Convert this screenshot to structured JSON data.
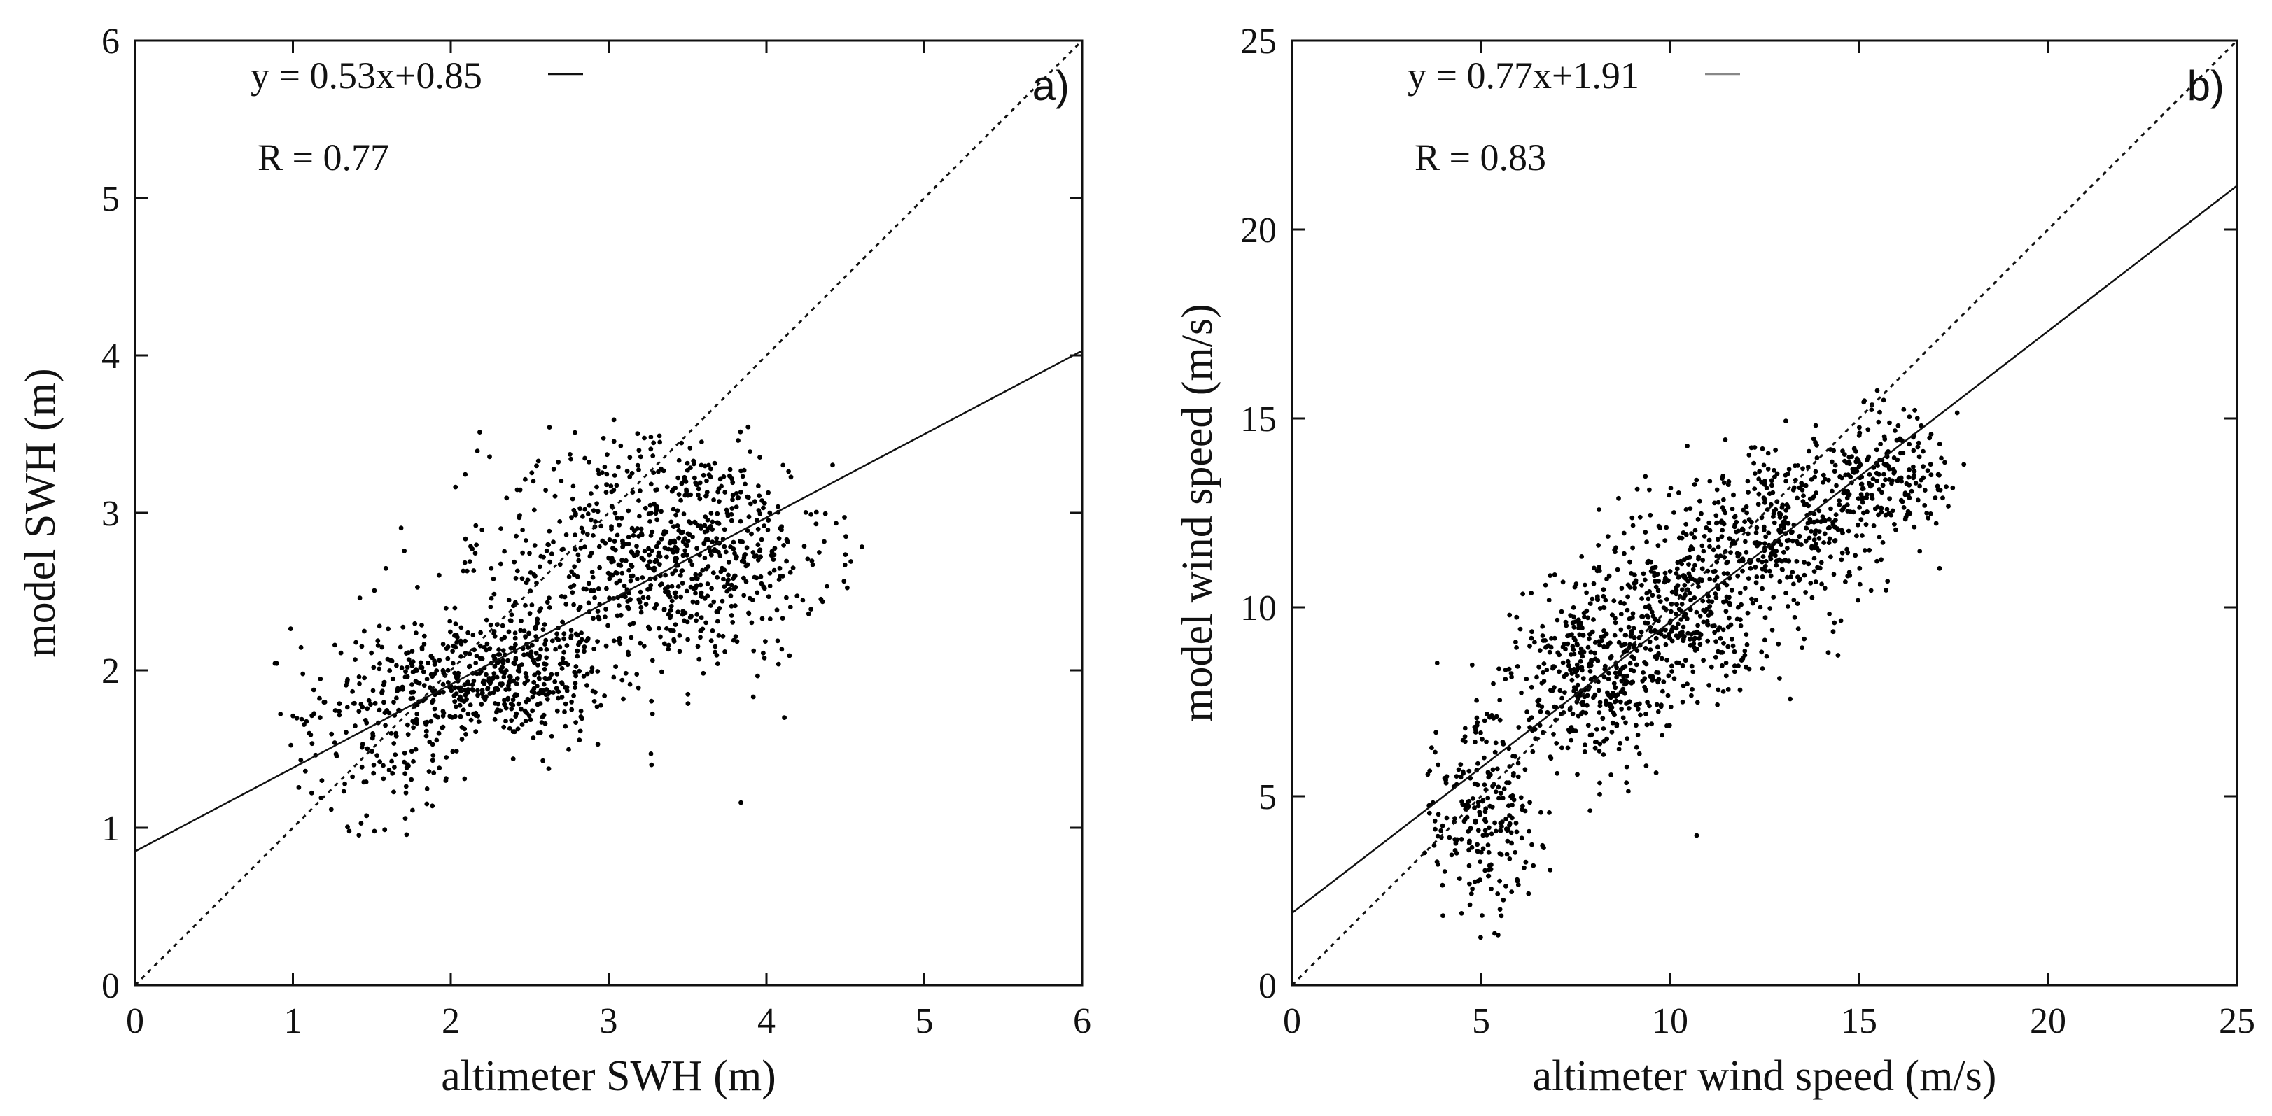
{
  "chart_data": [
    {
      "type": "scatter",
      "panel_label": "a)",
      "xlabel": "altimeter SWH (m)",
      "ylabel": "model SWH (m)",
      "xlim": [
        0,
        6
      ],
      "ylim": [
        0,
        6
      ],
      "xticks": [
        "0",
        "1",
        "2",
        "3",
        "4",
        "5",
        "6"
      ],
      "yticks": [
        "0",
        "1",
        "2",
        "3",
        "4",
        "5",
        "6"
      ],
      "fit_label": "y = 0.53x+0.85",
      "r_label": "R = 0.77",
      "fit_line": {
        "slope": 0.53,
        "intercept": 0.85
      },
      "identity_line": true,
      "point_count": 1500,
      "point_clusters": [
        {
          "cx": 2.3,
          "cy": 1.95,
          "sx": 0.35,
          "sy": 0.2,
          "n": 450
        },
        {
          "cx": 3.5,
          "cy": 2.75,
          "sx": 0.45,
          "sy": 0.35,
          "n": 650
        },
        {
          "cx": 1.6,
          "cy": 1.7,
          "sx": 0.3,
          "sy": 0.35,
          "n": 200
        },
        {
          "cx": 2.8,
          "cy": 2.6,
          "sx": 0.5,
          "sy": 0.5,
          "n": 200
        }
      ],
      "xrange_points": [
        0.85,
        4.7
      ],
      "yrange_points": [
        0.95,
        3.6
      ]
    },
    {
      "type": "scatter",
      "panel_label": "b)",
      "xlabel": "altimeter wind speed (m/s)",
      "ylabel": "model wind speed (m/s)",
      "xlim": [
        0,
        25
      ],
      "ylim": [
        0,
        25
      ],
      "xticks": [
        "0",
        "5",
        "10",
        "15",
        "20",
        "25"
      ],
      "yticks": [
        "0",
        "5",
        "10",
        "15",
        "20",
        "25"
      ],
      "fit_label": "y = 0.77x+1.91",
      "r_label": "R = 0.83",
      "fit_line": {
        "slope": 0.77,
        "intercept": 1.91
      },
      "identity_line": true,
      "point_count": 1600,
      "point_clusters": [
        {
          "cx": 5.0,
          "cy": 4.5,
          "sx": 0.9,
          "sy": 1.3,
          "n": 250
        },
        {
          "cx": 8.0,
          "cy": 8.3,
          "sx": 1.0,
          "sy": 1.3,
          "n": 400
        },
        {
          "cx": 10.5,
          "cy": 10.0,
          "sx": 1.2,
          "sy": 1.3,
          "n": 400
        },
        {
          "cx": 13.0,
          "cy": 12.3,
          "sx": 1.2,
          "sy": 1.1,
          "n": 350
        },
        {
          "cx": 15.8,
          "cy": 13.5,
          "sx": 0.8,
          "sy": 0.9,
          "n": 200
        }
      ],
      "xrange_points": [
        3.5,
        17.8
      ],
      "yrange_points": [
        0.3,
        16.5
      ]
    }
  ]
}
